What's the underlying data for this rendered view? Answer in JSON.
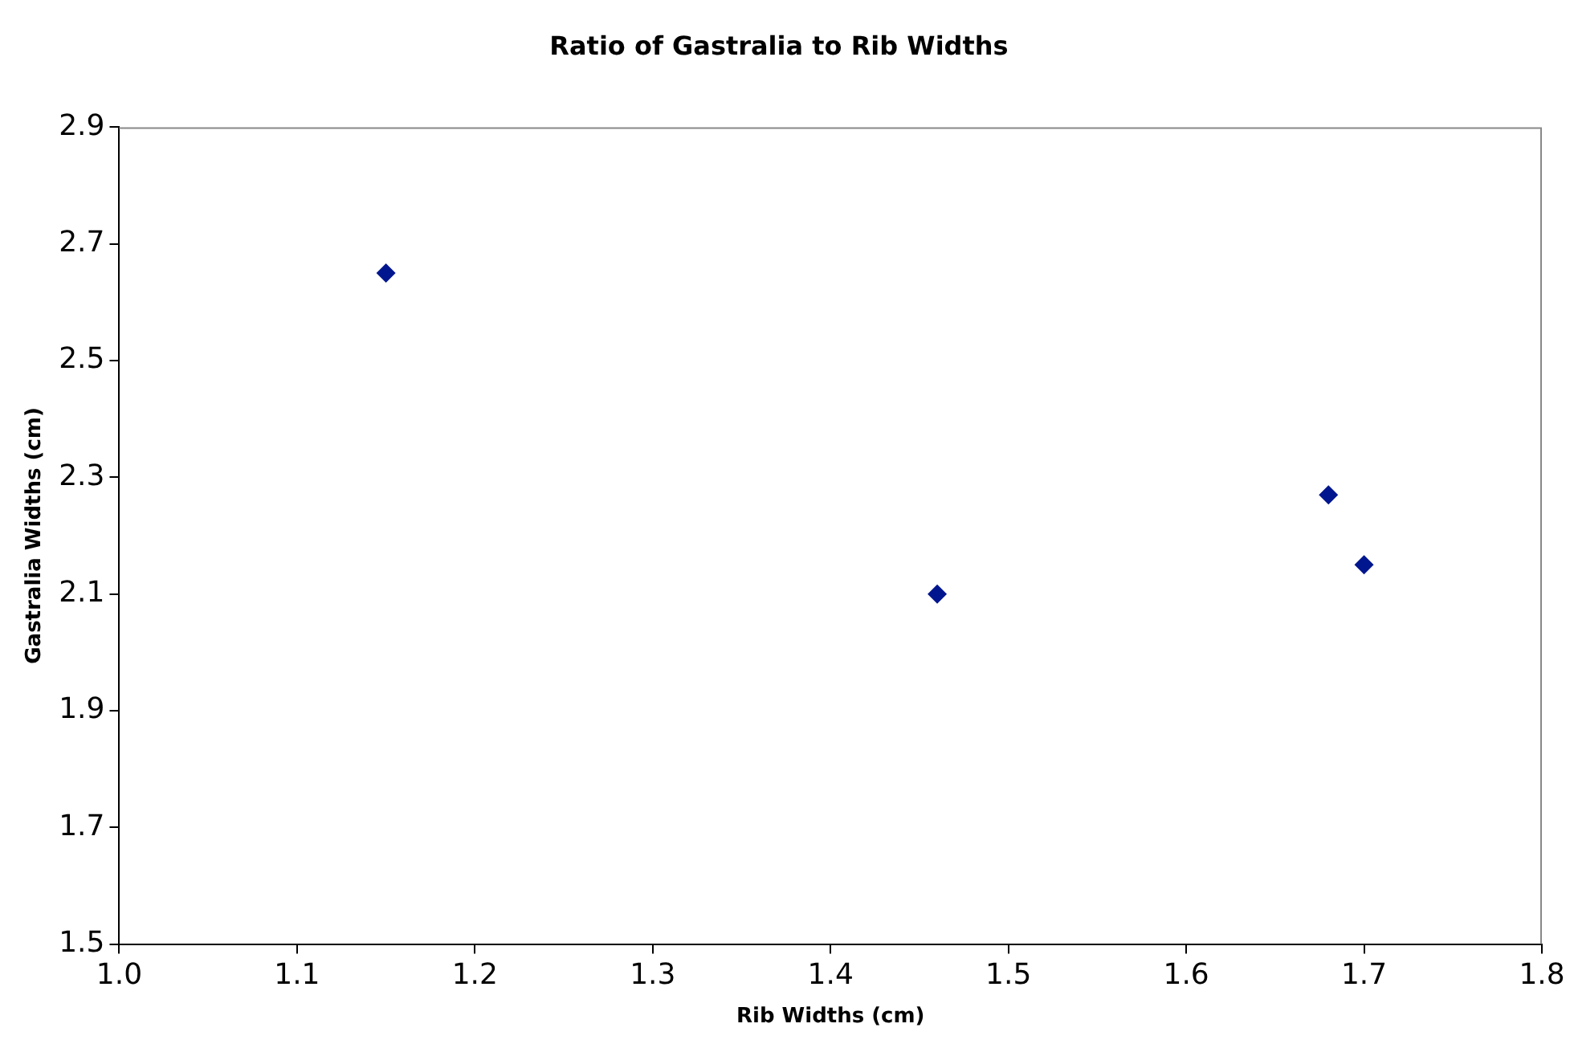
{
  "chart_data": {
    "type": "scatter",
    "title": "Ratio of Gastralia to Rib Widths",
    "xlabel": "Rib Widths (cm)",
    "ylabel": "Gastralia Widths (cm)",
    "x": [
      1.15,
      1.46,
      1.68,
      1.7
    ],
    "series": [
      {
        "color": "#00168e",
        "values": [
          2.65,
          2.1,
          2.27,
          2.15
        ]
      }
    ],
    "xlim": [
      1.0,
      1.8
    ],
    "xticks": [
      {
        "value": 1.0,
        "label": "1.0"
      },
      1.1,
      1.2,
      1.3,
      1.4,
      1.5,
      1.6,
      1.7,
      1.8
    ],
    "ylim": [
      1.5,
      2.9
    ],
    "yticks": [
      1.5,
      1.7,
      1.9,
      2.1,
      2.3,
      2.5,
      2.7,
      2.9
    ],
    "grid": false,
    "legend": false,
    "marker": "diamond"
  }
}
